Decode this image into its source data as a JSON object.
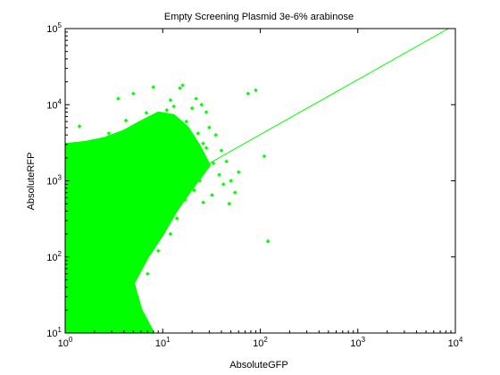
{
  "chart_data": {
    "type": "scatter",
    "title": "Empty Screening Plasmid 3e-6% arabinose",
    "xlabel": "AbsoluteGFP",
    "ylabel": "AbsoluteRFP",
    "x_scale": "log",
    "y_scale": "log",
    "xlim": [
      1,
      10000
    ],
    "ylim": [
      10,
      100000
    ],
    "x_ticks": [
      {
        "base": "10",
        "exp": "0",
        "value": 1
      },
      {
        "base": "10",
        "exp": "1",
        "value": 10
      },
      {
        "base": "10",
        "exp": "2",
        "value": 100
      },
      {
        "base": "10",
        "exp": "3",
        "value": 1000
      },
      {
        "base": "10",
        "exp": "4",
        "value": 10000
      }
    ],
    "y_ticks": [
      {
        "base": "10",
        "exp": "1",
        "value": 10
      },
      {
        "base": "10",
        "exp": "2",
        "value": 100
      },
      {
        "base": "10",
        "exp": "3",
        "value": 1000
      },
      {
        "base": "10",
        "exp": "4",
        "value": 10000
      },
      {
        "base": "10",
        "exp": "5",
        "value": 100000
      }
    ],
    "grid": false,
    "legend": "none",
    "colors": {
      "points": "#00ff00",
      "fit_line": "#00ff00",
      "axes": "#000000"
    },
    "series": [
      {
        "kind": "scatter",
        "marker": "diamond",
        "points": [
          [
            1.0,
            10.5
          ],
          [
            1.1,
            14
          ],
          [
            1.3,
            20
          ],
          [
            1.2,
            35
          ],
          [
            1.05,
            60
          ],
          [
            1.4,
            95
          ],
          [
            1.1,
            150
          ],
          [
            1.6,
            240
          ],
          [
            1.2,
            400
          ],
          [
            1.5,
            650
          ],
          [
            1.1,
            900
          ],
          [
            1.3,
            1100
          ],
          [
            1.8,
            1400
          ],
          [
            2.1,
            1700
          ],
          [
            2.5,
            2000
          ],
          [
            3.0,
            2500
          ],
          [
            4.0,
            3000
          ],
          [
            5.5,
            4000
          ],
          [
            7.0,
            5500
          ],
          [
            9.0,
            7000
          ],
          [
            11.0,
            8500
          ],
          [
            13.0,
            9500
          ],
          [
            16.0,
            18000
          ],
          [
            20.0,
            9000
          ],
          [
            22.0,
            12000
          ],
          [
            25.0,
            10000
          ],
          [
            28.0,
            8000
          ],
          [
            30.0,
            5000
          ],
          [
            35.0,
            4000
          ],
          [
            40.0,
            2500
          ],
          [
            45.0,
            1800
          ],
          [
            50.0,
            1000
          ],
          [
            55.0,
            700
          ],
          [
            60.0,
            1300
          ],
          [
            75.0,
            14000
          ],
          [
            90.0,
            15500
          ],
          [
            110.0,
            2100
          ],
          [
            120.0,
            160
          ],
          [
            3.5,
            12000
          ],
          [
            5.0,
            14000
          ],
          [
            8.0,
            17000
          ],
          [
            12.0,
            11500
          ],
          [
            2.2,
            500
          ],
          [
            3.2,
            700
          ],
          [
            4.5,
            900
          ],
          [
            6.0,
            1200
          ],
          [
            8.5,
            1700
          ],
          [
            10.0,
            2200
          ],
          [
            14.0,
            2800
          ],
          [
            18.0,
            3500
          ],
          [
            23.0,
            4200
          ],
          [
            26.0,
            3100
          ],
          [
            12.0,
            1500
          ],
          [
            9.0,
            1000
          ],
          [
            7.0,
            700
          ],
          [
            5.0,
            450
          ],
          [
            4.0,
            300
          ],
          [
            3.0,
            200
          ],
          [
            6.5,
            240
          ],
          [
            8.0,
            500
          ],
          [
            11.0,
            900
          ],
          [
            15.0,
            1400
          ],
          [
            19.0,
            2100
          ],
          [
            28.0,
            2700
          ],
          [
            33.0,
            1700
          ],
          [
            20.0,
            1100
          ],
          [
            16.0,
            800
          ],
          [
            13.0,
            600
          ],
          [
            10.0,
            400
          ],
          [
            8.0,
            260
          ],
          [
            6.0,
            160
          ],
          [
            4.5,
            90
          ],
          [
            3.8,
            55
          ],
          [
            3.0,
            35
          ],
          [
            2.6,
            22
          ],
          [
            2.2,
            14
          ],
          [
            1.8,
            11
          ],
          [
            5.5,
            30
          ],
          [
            7.0,
            60
          ],
          [
            9.0,
            120
          ],
          [
            12.0,
            200
          ],
          [
            14.0,
            320
          ],
          [
            17.0,
            560
          ],
          [
            21.0,
            750
          ],
          [
            24.0,
            1000
          ],
          [
            2.0,
            3200
          ],
          [
            2.8,
            4200
          ],
          [
            4.2,
            6200
          ],
          [
            6.8,
            7800
          ],
          [
            10.5,
            6800
          ],
          [
            13.5,
            4600
          ],
          [
            17.5,
            6000
          ],
          [
            1.4,
            5200
          ],
          [
            1.2,
            3000
          ],
          [
            38.0,
            1200
          ],
          [
            42.0,
            900
          ],
          [
            48.0,
            500
          ],
          [
            32.0,
            650
          ],
          [
            26.0,
            520
          ],
          [
            15.0,
            16500
          ]
        ]
      },
      {
        "kind": "line",
        "name": "",
        "points": [
          [
            30,
            1700
          ],
          [
            8500,
            100000
          ]
        ]
      }
    ]
  }
}
